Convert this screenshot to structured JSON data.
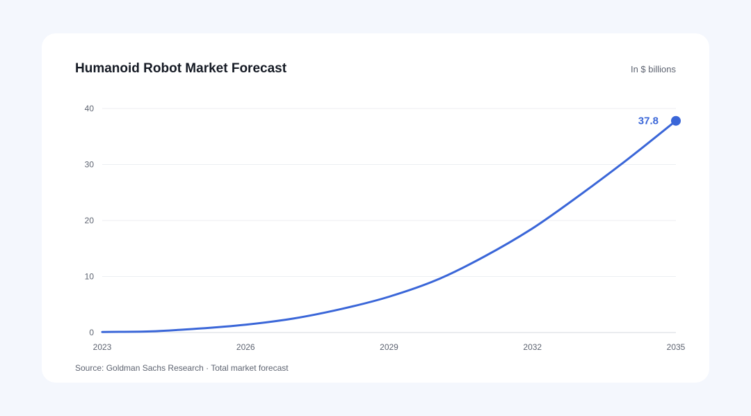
{
  "chart_data": {
    "type": "line",
    "title": "Humanoid Robot Market Forecast",
    "units": "In $ billions",
    "source": "Source: Goldman Sachs Research · Total market forecast",
    "x_ticks": [
      2023,
      2026,
      2029,
      2032,
      2035
    ],
    "y_ticks": [
      0,
      10,
      20,
      30,
      40
    ],
    "xlim": [
      2023,
      2035
    ],
    "ylim": [
      0,
      40
    ],
    "grid": true,
    "series": [
      {
        "x": [
          2023,
          2024,
          2025,
          2026,
          2027,
          2028,
          2029,
          2030,
          2031,
          2032,
          2033,
          2034,
          2035
        ],
        "values": [
          0.1,
          0.2,
          0.7,
          1.4,
          2.5,
          4.2,
          6.4,
          9.4,
          13.6,
          18.6,
          24.6,
          31.0,
          37.8
        ],
        "color": "#3a66d8"
      }
    ],
    "end_label": "37.8"
  }
}
